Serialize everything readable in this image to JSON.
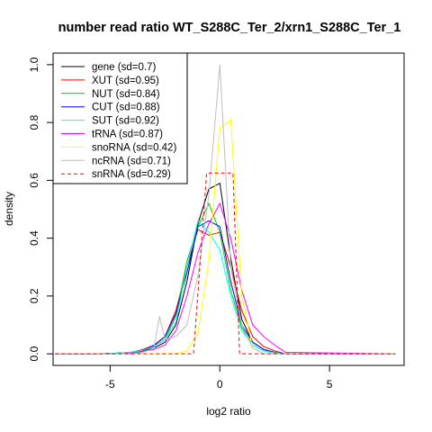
{
  "chart_data": {
    "type": "line",
    "title": "number read ratio WT_S288C_Ter_2/xrn1_S288C_Ter_1",
    "xlabel": "log2 ratio",
    "ylabel": "density",
    "xlim": [
      -7.6,
      8.4
    ],
    "ylim": [
      -0.04,
      1.04
    ],
    "xticks": [
      -5,
      0,
      5
    ],
    "xtick_labels": [
      "-5",
      "0",
      "5"
    ],
    "yticks": [
      0.0,
      0.2,
      0.4,
      0.6,
      0.8,
      1.0
    ],
    "ytick_labels": [
      "0.0",
      "0.2",
      "0.4",
      "0.6",
      "0.8",
      "1.0"
    ],
    "grid": false,
    "legend_position": "top-left",
    "series": [
      {
        "name": "gene (sd=0.7)",
        "color": "#000000",
        "dash": false,
        "x": [
          -7.5,
          -5.5,
          -4.5,
          -4,
          -3.5,
          -3,
          -2.5,
          -2,
          -1.5,
          -1,
          -0.5,
          0,
          0.5,
          1,
          1.5,
          2,
          2.5,
          3,
          8
        ],
        "y": [
          0,
          0,
          0.003,
          0.005,
          0.01,
          0.02,
          0.04,
          0.1,
          0.25,
          0.45,
          0.57,
          0.59,
          0.33,
          0.12,
          0.04,
          0.015,
          0.005,
          0,
          0
        ]
      },
      {
        "name": "XUT (sd=0.95)",
        "color": "#ff0000",
        "dash": false,
        "x": [
          -7.5,
          -5.5,
          -4.5,
          -4,
          -3.5,
          -3,
          -2.5,
          -2,
          -1.5,
          -1,
          -0.5,
          0,
          0.5,
          1,
          1.5,
          2,
          2.5,
          3,
          8
        ],
        "y": [
          0,
          0,
          0.003,
          0.006,
          0.015,
          0.03,
          0.06,
          0.15,
          0.3,
          0.43,
          0.41,
          0.42,
          0.3,
          0.15,
          0.06,
          0.025,
          0.01,
          0,
          0
        ]
      },
      {
        "name": "NUT (sd=0.84)",
        "color": "#00cc00",
        "dash": false,
        "x": [
          -7.5,
          -5.5,
          -4.5,
          -4,
          -3.5,
          -3,
          -2.5,
          -2,
          -1.5,
          -1,
          -0.5,
          0,
          0.5,
          1,
          1.5,
          2,
          2.5,
          3,
          8
        ],
        "y": [
          0,
          0,
          0.003,
          0.005,
          0.012,
          0.025,
          0.05,
          0.13,
          0.32,
          0.44,
          0.52,
          0.42,
          0.22,
          0.09,
          0.03,
          0.01,
          0.003,
          0,
          0
        ]
      },
      {
        "name": "CUT (sd=0.88)",
        "color": "#0000ff",
        "dash": false,
        "x": [
          -7.5,
          -5.5,
          -4.5,
          -4,
          -3.5,
          -3,
          -2.5,
          -2,
          -1.5,
          -1,
          -0.5,
          0,
          0.5,
          1,
          1.5,
          2,
          2.5,
          3,
          8
        ],
        "y": [
          0,
          0,
          0.003,
          0.006,
          0.013,
          0.028,
          0.06,
          0.14,
          0.28,
          0.44,
          0.46,
          0.44,
          0.25,
          0.1,
          0.04,
          0.015,
          0.005,
          0,
          0
        ]
      },
      {
        "name": "SUT (sd=0.92)",
        "color": "#00ffff",
        "dash": false,
        "x": [
          -7.5,
          -5.5,
          -4.5,
          -4,
          -3.5,
          -3,
          -2.5,
          -2,
          -1.5,
          -1,
          -0.5,
          0,
          0.5,
          1,
          1.5,
          2,
          2.5,
          3,
          8
        ],
        "y": [
          0,
          0,
          0.003,
          0.006,
          0.012,
          0.025,
          0.05,
          0.11,
          0.3,
          0.46,
          0.42,
          0.36,
          0.2,
          0.08,
          0.03,
          0.01,
          0.004,
          0,
          0
        ]
      },
      {
        "name": "tRNA (sd=0.87)",
        "color": "#ff00ff",
        "dash": false,
        "x": [
          -7.5,
          -5,
          -4.5,
          -4,
          -3.5,
          -3,
          -2.5,
          -2,
          -1.5,
          -1,
          -0.5,
          0,
          0.5,
          1,
          1.5,
          2,
          2.5,
          3,
          8
        ],
        "y": [
          0,
          0,
          0,
          0.003,
          0.008,
          0.015,
          0.03,
          0.08,
          0.2,
          0.35,
          0.45,
          0.52,
          0.4,
          0.22,
          0.1,
          0.06,
          0.03,
          0.005,
          0
        ]
      },
      {
        "name": "snoRNA (sd=0.42)",
        "color": "#ffff00",
        "dash": false,
        "x": [
          -7.5,
          -2,
          -1.5,
          -1,
          -0.5,
          0,
          0.5,
          1,
          1.5,
          2,
          8
        ],
        "y": [
          0,
          0,
          0.01,
          0.07,
          0.32,
          0.78,
          0.81,
          0.2,
          0.02,
          0,
          0
        ]
      },
      {
        "name": "ncRNA (sd=0.71)",
        "color": "#bebebe",
        "dash": false,
        "x": [
          -7.5,
          -4,
          -3.5,
          -3,
          -2.75,
          -2.5,
          -2,
          -1.5,
          -1,
          -0.5,
          0,
          0.5,
          1,
          1.5,
          2,
          2.5,
          3,
          8
        ],
        "y": [
          0,
          0,
          0.005,
          0.02,
          0.13,
          0.05,
          0.06,
          0.1,
          0.27,
          0.55,
          1.0,
          0.3,
          0.1,
          0.02,
          0,
          0,
          0,
          0
        ]
      },
      {
        "name": "snRNA (sd=0.29)",
        "color": "#ff0000",
        "dash": true,
        "x": [
          -7.5,
          -1.2,
          -0.6,
          0.6,
          0.9,
          8
        ],
        "y": [
          0,
          0,
          0.625,
          0.625,
          0,
          0
        ]
      }
    ]
  }
}
